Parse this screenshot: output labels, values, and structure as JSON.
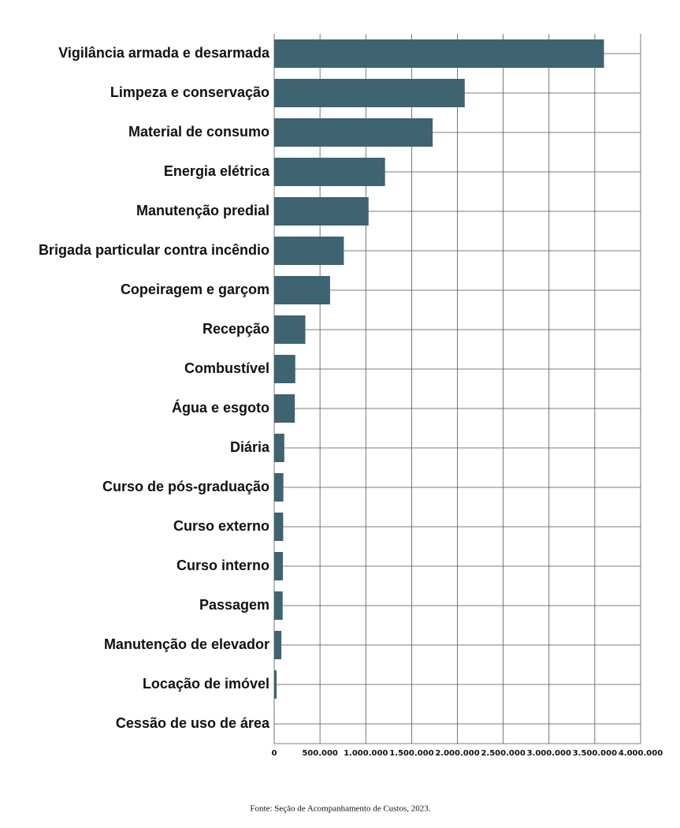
{
  "chart_data": {
    "type": "bar",
    "orientation": "horizontal",
    "categories": [
      "Vigilância armada e desarmada",
      "Limpeza e conservação",
      "Material de consumo",
      "Energia elétrica",
      "Manutenção predial",
      "Brigada particular contra incêndio",
      "Copeiragem e garçom",
      "Recepção",
      "Combustível",
      "Água e esgoto",
      "Diária",
      "Curso de pós-graduação",
      "Curso externo",
      "Curso interno",
      "Passagem",
      "Manutenção de elevador",
      "Locação de imóvel",
      "Cessão de uso de área"
    ],
    "values": [
      3600000,
      2080000,
      1730000,
      1210000,
      1030000,
      760000,
      610000,
      340000,
      230000,
      225000,
      110000,
      100000,
      98000,
      95000,
      92000,
      78000,
      26000,
      2000
    ],
    "color": "#3d6470",
    "xlim": [
      0,
      4000000
    ],
    "xticks": [
      0,
      {
        "value": 500000,
        "label": "500.000"
      },
      {
        "value": 1000000,
        "label": "1.000.000"
      },
      {
        "value": 1500000,
        "label": "1.500.000"
      },
      {
        "value": 2000000,
        "label": "2.000.000"
      },
      {
        "value": 2500000,
        "label": "2.500.000"
      },
      {
        "value": 3000000,
        "label": "3.000.000"
      },
      {
        "value": 3500000,
        "label": "3.500.000"
      },
      {
        "value": 4000000,
        "label": "4.000.000"
      }
    ],
    "grid": true,
    "source": "Fonte: Seção de Acompanhamento de Custos, 2023."
  }
}
